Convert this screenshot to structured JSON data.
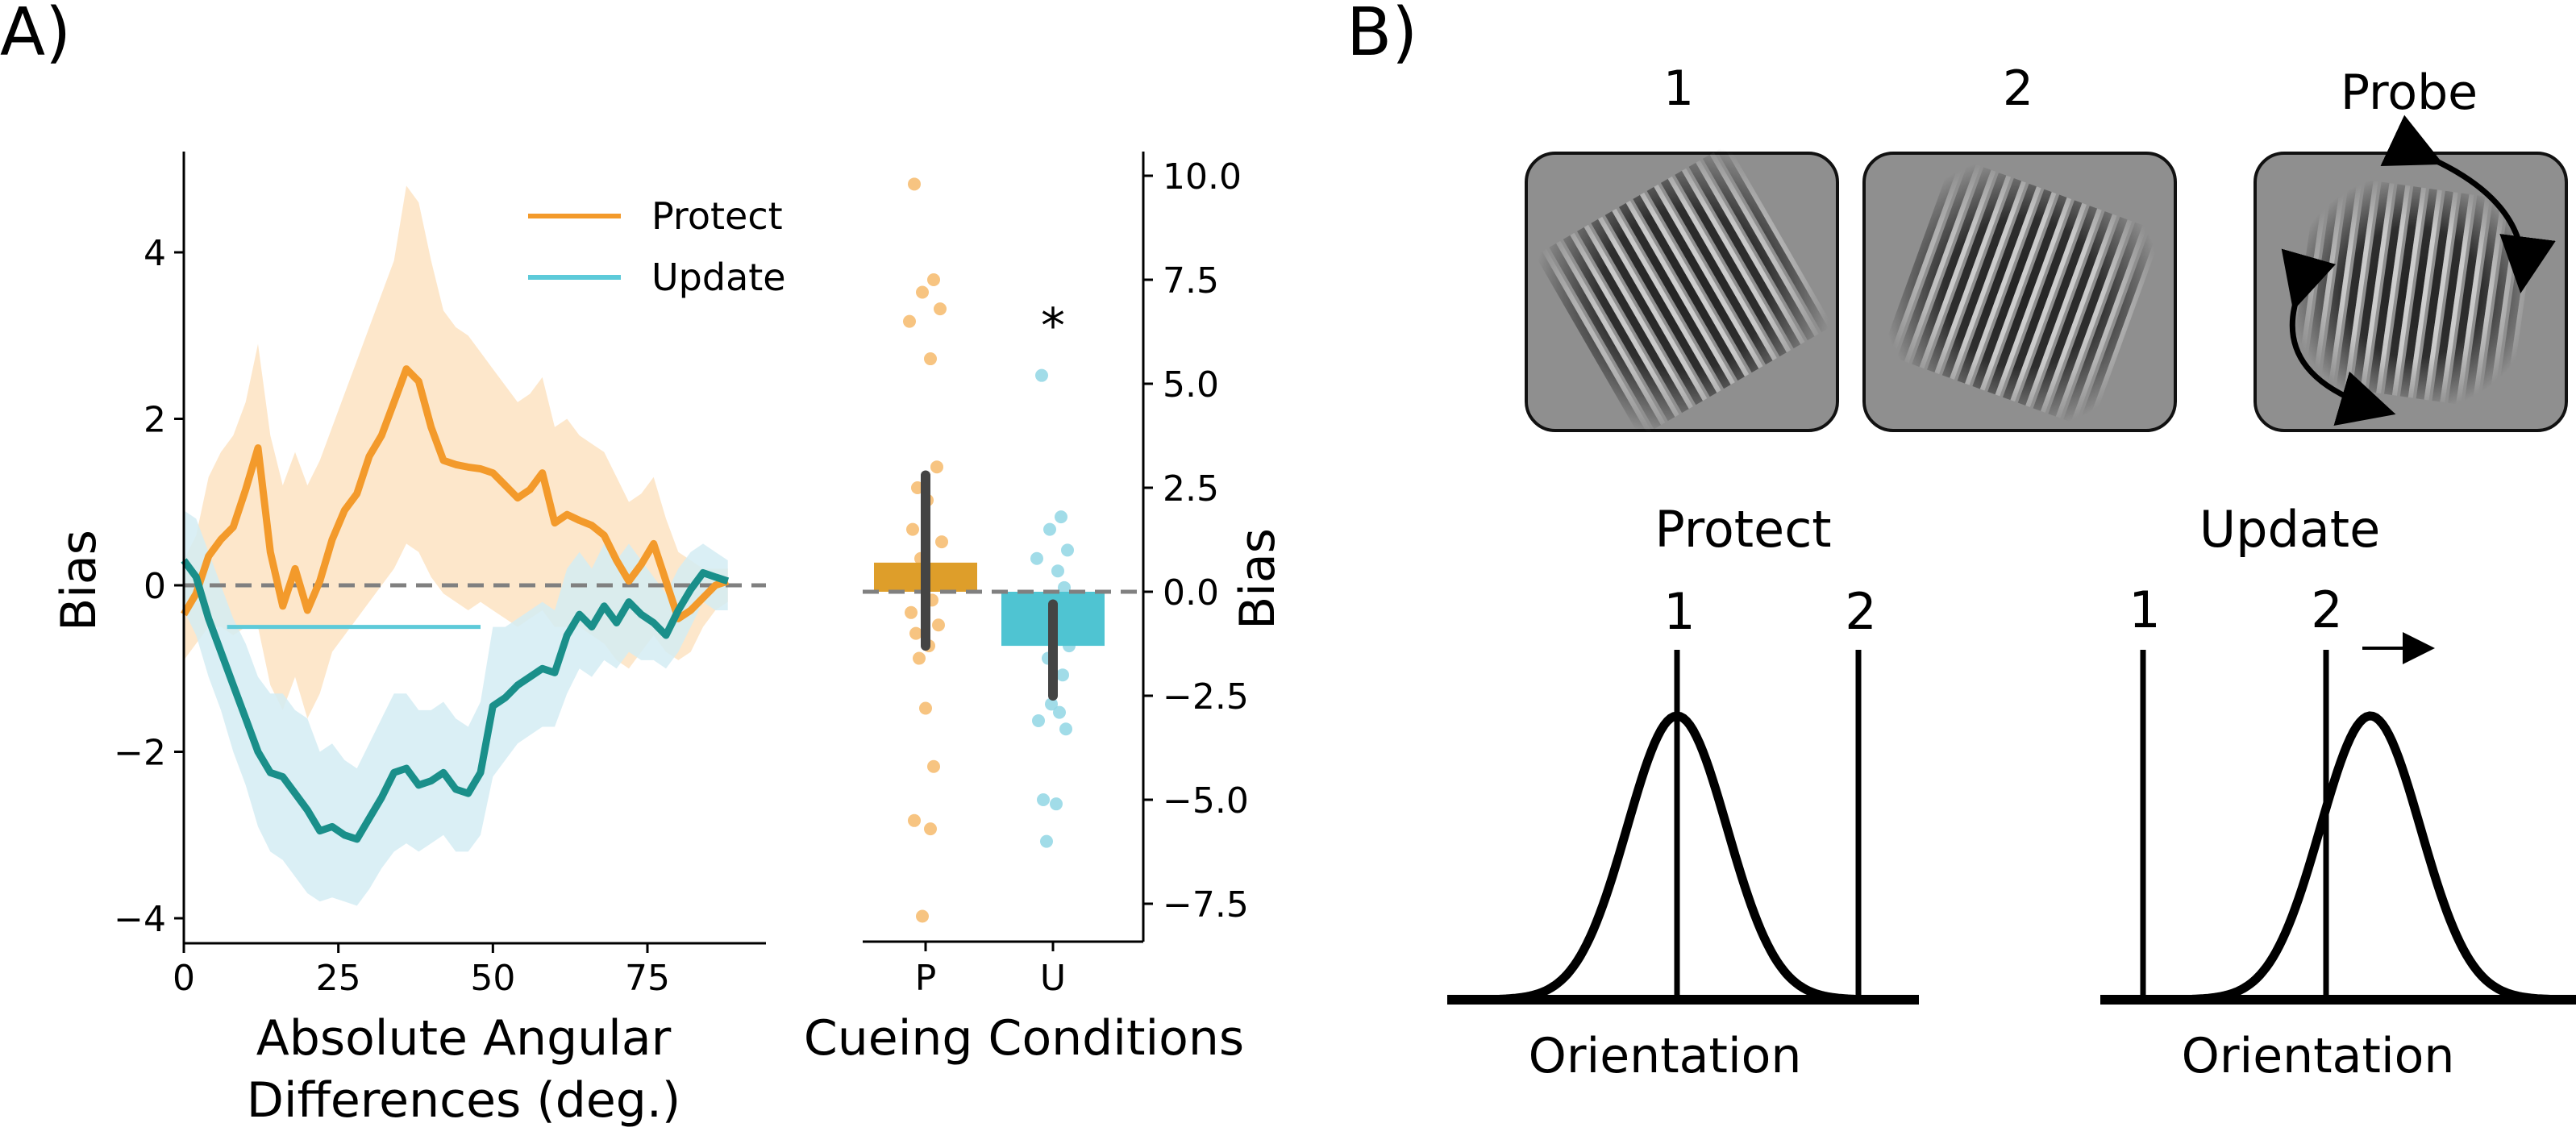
{
  "panel_a": {
    "label": "A)",
    "line_chart": {
      "ylabel": "Bias",
      "xlabel_line1": "Absolute Angular",
      "xlabel_line2": "Differences (deg.)",
      "legend": [
        "Protect",
        "Update"
      ]
    },
    "bar_chart": {
      "ylabel": "Bias",
      "xlabel": "Cueing Conditions",
      "significance_marker": "*"
    }
  },
  "panel_b": {
    "label": "B)",
    "stimuli": [
      {
        "label": "1",
        "kind": "grating",
        "orientation_deg": -30
      },
      {
        "label": "2",
        "kind": "grating",
        "orientation_deg": 20
      },
      {
        "label": "Probe",
        "kind": "grating-with-rotation-arrows",
        "orientation_deg": 8
      }
    ],
    "curves": [
      {
        "title": "Protect",
        "line_labels": [
          "1",
          "2"
        ],
        "xlabel": "Orientation",
        "peak_at": "1"
      },
      {
        "title": "Update",
        "line_labels": [
          "1",
          "2"
        ],
        "xlabel": "Orientation",
        "peak_at": "shifted right of 2"
      }
    ],
    "icons": [
      "rotation-arrow-icon",
      "right-arrow-icon"
    ]
  },
  "colors": {
    "protect_line": "#F39A2B",
    "protect_band": "#FDE3C2",
    "update_line": "#1A8F8A",
    "update_band": "#D3ECF3",
    "update_legend": "#5DCAD9",
    "protect_bar": "#DE9E2A",
    "update_bar": "#4FC4D2",
    "protect_dots": "#F6BA6B",
    "update_dots": "#91D6E4",
    "error_bar": "#444444",
    "zero_line": "#808080",
    "stimulus_bg": "#8f8f8f"
  },
  "chart_data": [
    {
      "type": "line",
      "xlabel": "Absolute Angular Differences (deg.)",
      "ylabel": "Bias",
      "xlim": [
        0,
        90
      ],
      "ylim": [
        -4.3,
        5.3
      ],
      "xticks": [
        0,
        25,
        50,
        75
      ],
      "yticks": [
        -4,
        -2,
        0,
        2,
        4
      ],
      "grid": false,
      "legend_position": "top-center",
      "zero_line": "dashed",
      "series": [
        {
          "name": "Protect",
          "x": [
            0,
            2,
            4,
            6,
            8,
            10,
            12,
            14,
            16,
            18,
            20,
            22,
            24,
            26,
            28,
            30,
            32,
            34,
            36,
            38,
            40,
            42,
            44,
            46,
            48,
            50,
            52,
            54,
            56,
            58,
            60,
            62,
            64,
            66,
            68,
            70,
            72,
            74,
            76,
            78,
            80,
            82,
            84,
            86,
            88
          ],
          "y": [
            -0.35,
            -0.1,
            0.35,
            0.55,
            0.7,
            1.15,
            1.65,
            0.4,
            -0.25,
            0.2,
            -0.3,
            0.05,
            0.55,
            0.9,
            1.1,
            1.55,
            1.8,
            2.2,
            2.6,
            2.45,
            1.9,
            1.5,
            1.45,
            1.42,
            1.4,
            1.35,
            1.2,
            1.05,
            1.15,
            1.35,
            0.75,
            0.85,
            0.78,
            0.72,
            0.6,
            0.3,
            0.05,
            0.25,
            0.5,
            0.05,
            -0.4,
            -0.3,
            -0.15,
            0.0,
            0.05
          ],
          "ci_lower": [
            -0.9,
            -0.7,
            -0.5,
            -0.5,
            -0.6,
            -0.5,
            -0.5,
            -1.2,
            -1.5,
            -1.1,
            -1.6,
            -1.3,
            -0.8,
            -0.6,
            -0.4,
            -0.2,
            0.0,
            0.2,
            0.5,
            0.4,
            0.1,
            -0.1,
            -0.2,
            -0.3,
            -0.2,
            -0.3,
            -0.4,
            -0.5,
            -0.4,
            -0.3,
            -0.5,
            -0.5,
            -0.5,
            -0.6,
            -0.7,
            -0.9,
            -1.0,
            -0.8,
            -0.6,
            -0.8,
            -0.9,
            -0.8,
            -0.5,
            -0.3,
            -0.2
          ],
          "ci_upper": [
            0.3,
            0.6,
            1.3,
            1.6,
            1.8,
            2.2,
            2.9,
            1.8,
            1.2,
            1.6,
            1.2,
            1.5,
            1.9,
            2.3,
            2.7,
            3.1,
            3.5,
            3.9,
            4.8,
            4.6,
            3.9,
            3.3,
            3.1,
            3.0,
            2.8,
            2.6,
            2.4,
            2.2,
            2.3,
            2.5,
            1.9,
            2.0,
            1.8,
            1.7,
            1.6,
            1.3,
            1.0,
            1.1,
            1.3,
            0.8,
            0.4,
            0.3,
            0.2,
            0.2,
            0.2
          ]
        },
        {
          "name": "Update",
          "x": [
            0,
            2,
            4,
            6,
            8,
            10,
            12,
            14,
            16,
            18,
            20,
            22,
            24,
            26,
            28,
            30,
            32,
            34,
            36,
            38,
            40,
            42,
            44,
            46,
            48,
            50,
            52,
            54,
            56,
            58,
            60,
            62,
            64,
            66,
            68,
            70,
            72,
            74,
            76,
            78,
            80,
            82,
            84,
            86,
            88
          ],
          "y": [
            0.3,
            0.1,
            -0.4,
            -0.8,
            -1.2,
            -1.6,
            -2.0,
            -2.25,
            -2.3,
            -2.5,
            -2.7,
            -2.95,
            -2.9,
            -3.0,
            -3.05,
            -2.8,
            -2.55,
            -2.25,
            -2.2,
            -2.4,
            -2.35,
            -2.25,
            -2.45,
            -2.5,
            -2.25,
            -1.45,
            -1.35,
            -1.2,
            -1.1,
            -1.0,
            -1.05,
            -0.6,
            -0.35,
            -0.5,
            -0.25,
            -0.45,
            -0.2,
            -0.35,
            -0.45,
            -0.6,
            -0.3,
            -0.05,
            0.15,
            0.1,
            0.05
          ],
          "ci_lower": [
            -0.3,
            -0.6,
            -1.1,
            -1.5,
            -2.0,
            -2.4,
            -2.9,
            -3.2,
            -3.3,
            -3.5,
            -3.7,
            -3.8,
            -3.75,
            -3.8,
            -3.85,
            -3.65,
            -3.4,
            -3.2,
            -3.1,
            -3.2,
            -3.1,
            -3.0,
            -3.2,
            -3.2,
            -3.0,
            -2.3,
            -2.1,
            -1.9,
            -1.8,
            -1.7,
            -1.7,
            -1.3,
            -1.0,
            -1.1,
            -0.9,
            -1.0,
            -0.8,
            -0.9,
            -0.9,
            -1.0,
            -0.8,
            -0.5,
            -0.2,
            -0.3,
            -0.3
          ],
          "ci_upper": [
            0.9,
            0.8,
            0.4,
            0.0,
            -0.4,
            -0.7,
            -1.1,
            -1.3,
            -1.3,
            -1.5,
            -1.6,
            -2.0,
            -1.9,
            -2.1,
            -2.2,
            -1.9,
            -1.6,
            -1.3,
            -1.3,
            -1.5,
            -1.5,
            -1.4,
            -1.6,
            -1.7,
            -1.4,
            -0.5,
            -0.5,
            -0.4,
            -0.3,
            -0.2,
            -0.3,
            0.2,
            0.4,
            0.2,
            0.5,
            0.3,
            0.5,
            0.3,
            0.1,
            -0.1,
            0.2,
            0.4,
            0.5,
            0.4,
            0.3
          ]
        }
      ],
      "significance_bar": {
        "series": "Update",
        "x_start": 7,
        "x_end": 48,
        "y": -0.5
      }
    },
    {
      "type": "bar",
      "categories": [
        "P",
        "U"
      ],
      "ylabel": "Bias",
      "xlabel": "Cueing Conditions",
      "ylim": [
        -8.5,
        10.5
      ],
      "yticks": [
        -7.5,
        -5.0,
        -2.5,
        0.0,
        2.5,
        5.0,
        7.5,
        10.0
      ],
      "axis_side": "right",
      "series": [
        {
          "name": "Mean",
          "values": [
            0.7,
            -1.3
          ]
        }
      ],
      "error_bars": [
        [
          -1.3,
          2.8
        ],
        [
          -2.5,
          -0.3
        ]
      ],
      "points": [
        [
          9.8,
          7.5,
          7.2,
          6.8,
          6.5,
          5.6,
          3.0,
          2.5,
          2.2,
          1.5,
          1.2,
          0.8,
          0.5,
          0.2,
          -0.2,
          -0.5,
          -0.8,
          -1.0,
          -1.3,
          -1.6,
          -2.8,
          -4.2,
          -5.5,
          -5.7,
          -7.8
        ],
        [
          5.2,
          1.8,
          1.5,
          1.0,
          0.8,
          0.5,
          0.1,
          -0.2,
          -0.5,
          -1.0,
          -1.3,
          -1.6,
          -2.0,
          -2.7,
          -2.9,
          -3.1,
          -3.3,
          -5.0,
          -5.1,
          -6.0
        ]
      ],
      "significance": [
        "",
        "*"
      ]
    }
  ]
}
